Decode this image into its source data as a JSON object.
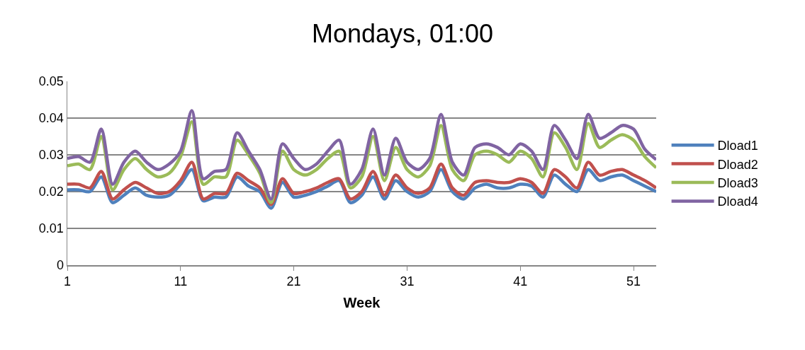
{
  "chart_data": {
    "type": "line",
    "title": "Mondays, 01:00",
    "xlabel": "Week",
    "x": [
      1,
      2,
      3,
      4,
      5,
      6,
      7,
      8,
      9,
      10,
      11,
      12,
      13,
      14,
      15,
      16,
      17,
      18,
      19,
      20,
      21,
      22,
      23,
      24,
      25,
      26,
      27,
      28,
      29,
      30,
      31,
      32,
      33,
      34,
      35,
      36,
      37,
      38,
      39,
      40,
      41,
      42,
      43,
      44,
      45,
      46,
      47,
      48,
      49,
      50,
      51,
      52,
      53
    ],
    "series": [
      {
        "name": "Dload1",
        "color": "#4f81bd",
        "values": [
          0.0205,
          0.0205,
          0.02,
          0.024,
          0.017,
          0.019,
          0.021,
          0.019,
          0.0185,
          0.019,
          0.022,
          0.026,
          0.0175,
          0.0185,
          0.0185,
          0.024,
          0.0215,
          0.02,
          0.0155,
          0.0225,
          0.0185,
          0.019,
          0.02,
          0.0215,
          0.023,
          0.017,
          0.019,
          0.024,
          0.018,
          0.023,
          0.02,
          0.0185,
          0.02,
          0.026,
          0.02,
          0.018,
          0.021,
          0.022,
          0.021,
          0.021,
          0.022,
          0.0215,
          0.0185,
          0.0245,
          0.022,
          0.02,
          0.026,
          0.023,
          0.024,
          0.0245,
          0.023,
          0.0215,
          0.02
        ]
      },
      {
        "name": "Dload2",
        "color": "#c0504d",
        "values": [
          0.022,
          0.022,
          0.021,
          0.0255,
          0.018,
          0.0205,
          0.0225,
          0.021,
          0.0195,
          0.02,
          0.023,
          0.028,
          0.018,
          0.0195,
          0.0195,
          0.025,
          0.023,
          0.021,
          0.0165,
          0.0235,
          0.0195,
          0.02,
          0.021,
          0.0225,
          0.0235,
          0.018,
          0.02,
          0.0255,
          0.019,
          0.0245,
          0.021,
          0.0195,
          0.021,
          0.0275,
          0.021,
          0.019,
          0.0225,
          0.023,
          0.0225,
          0.0225,
          0.0235,
          0.0225,
          0.0195,
          0.026,
          0.024,
          0.021,
          0.028,
          0.0245,
          0.0255,
          0.026,
          0.0245,
          0.023,
          0.021
        ]
      },
      {
        "name": "Dload3",
        "color": "#9bbb59",
        "values": [
          0.027,
          0.0275,
          0.026,
          0.035,
          0.0205,
          0.026,
          0.029,
          0.026,
          0.024,
          0.025,
          0.0295,
          0.039,
          0.022,
          0.024,
          0.024,
          0.034,
          0.03,
          0.025,
          0.017,
          0.031,
          0.026,
          0.0245,
          0.026,
          0.029,
          0.031,
          0.021,
          0.024,
          0.035,
          0.023,
          0.032,
          0.026,
          0.024,
          0.027,
          0.038,
          0.026,
          0.023,
          0.03,
          0.031,
          0.03,
          0.028,
          0.031,
          0.029,
          0.024,
          0.036,
          0.032,
          0.026,
          0.0385,
          0.032,
          0.034,
          0.0355,
          0.034,
          0.0295,
          0.0265
        ]
      },
      {
        "name": "Dload4",
        "color": "#8064a2",
        "values": [
          0.029,
          0.0295,
          0.028,
          0.037,
          0.022,
          0.028,
          0.031,
          0.028,
          0.026,
          0.0275,
          0.031,
          0.042,
          0.0235,
          0.0255,
          0.026,
          0.036,
          0.031,
          0.026,
          0.018,
          0.033,
          0.029,
          0.026,
          0.0275,
          0.031,
          0.034,
          0.022,
          0.026,
          0.037,
          0.0245,
          0.0345,
          0.028,
          0.026,
          0.029,
          0.041,
          0.028,
          0.0245,
          0.032,
          0.033,
          0.032,
          0.03,
          0.033,
          0.031,
          0.026,
          0.038,
          0.034,
          0.029,
          0.041,
          0.0345,
          0.036,
          0.038,
          0.037,
          0.0315,
          0.0287
        ]
      }
    ],
    "xlim": [
      1,
      53
    ],
    "xticks": [
      1,
      11,
      21,
      31,
      41,
      51
    ],
    "ylim": [
      0,
      0.05
    ],
    "yticks": [
      0,
      0.01,
      0.02,
      0.03,
      0.04,
      0.05
    ],
    "grid": "y",
    "legend": "right",
    "marker": "none",
    "line_style": "solid"
  }
}
